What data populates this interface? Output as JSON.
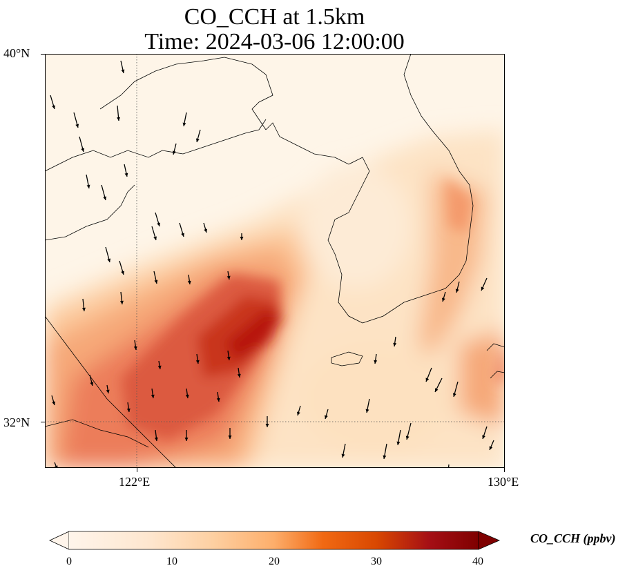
{
  "title": {
    "line1": "CO_CCH at 1.5km",
    "line2": "Time: 2024-03-06 12:00:00"
  },
  "map": {
    "lat_range": [
      31.2,
      40.0
    ],
    "lon_range": [
      120.0,
      130.0
    ],
    "lat_ticks": [
      {
        "value": 40,
        "label": "40°N"
      },
      {
        "value": 32,
        "label": "32°N"
      }
    ],
    "lon_ticks": [
      {
        "value": 122,
        "label": "122°E"
      },
      {
        "value": 130,
        "label": "130°E"
      }
    ],
    "gridlines": "dotted",
    "field": "CO_CCH",
    "wind_vectors": "black arrows, mostly from north / north-northwest"
  },
  "colorbar": {
    "label": "CO_CCH (ppbv)",
    "min": 0,
    "max": 40,
    "ticks": [
      "0",
      "10",
      "20",
      "30",
      "40"
    ],
    "extend": "both",
    "colormap": [
      "#fff5eb",
      "#fdd6a8",
      "#fdae6b",
      "#f16913",
      "#d94801",
      "#a50f15",
      "#7f0000"
    ]
  }
}
